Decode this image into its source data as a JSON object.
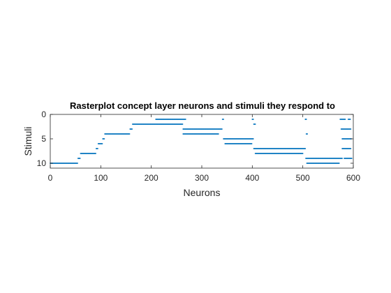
{
  "chart_data": {
    "type": "scatter",
    "title": "Rasterplot concept layer neurons and stimuli they respond to",
    "xlabel": "Neurons",
    "ylabel": "Stimuli",
    "xlim": [
      0,
      600
    ],
    "ylim": [
      0,
      11
    ],
    "y_reversed": true,
    "xticks": [
      0,
      100,
      200,
      300,
      400,
      500,
      600
    ],
    "yticks": [
      0,
      5,
      10
    ],
    "grid": false,
    "legend": "none",
    "marker_color": "#0072BD",
    "series": [
      {
        "segments": [
          {
            "y": 10,
            "x": [
              0,
              54
            ]
          },
          {
            "y": 9,
            "x": [
              55,
              59
            ]
          },
          {
            "y": 8,
            "x": [
              60,
              90
            ]
          },
          {
            "y": 7,
            "x": [
              91,
              94
            ]
          },
          {
            "y": 6,
            "x": [
              95,
              103
            ]
          },
          {
            "y": 5,
            "x": [
              104,
              107
            ]
          },
          {
            "y": 4,
            "x": [
              108,
              157
            ]
          },
          {
            "y": 3,
            "x": [
              158,
              162
            ]
          },
          {
            "y": 2,
            "x": [
              163,
              208
            ]
          },
          {
            "y": 1,
            "x": [
              209,
              268
            ]
          },
          {
            "y": 2,
            "x": [
              209,
              262
            ]
          },
          {
            "y": 3,
            "x": [
              263,
              340
            ]
          },
          {
            "y": 4,
            "x": [
              263,
              333
            ]
          },
          {
            "y": 1,
            "x": [
              341,
              343
            ]
          },
          {
            "y": 5,
            "x": [
              343,
              402
            ]
          },
          {
            "y": 6,
            "x": [
              346,
              399
            ]
          },
          {
            "y": 1,
            "x": [
              400,
              402
            ]
          },
          {
            "y": 2,
            "x": [
              403,
              406
            ]
          },
          {
            "y": 7,
            "x": [
              403,
              505
            ]
          },
          {
            "y": 8,
            "x": [
              406,
              500
            ]
          },
          {
            "y": 1,
            "x": [
              505,
              507
            ]
          },
          {
            "y": 4,
            "x": [
              507,
              509
            ]
          },
          {
            "y": 9,
            "x": [
              506,
              578
            ]
          },
          {
            "y": 10,
            "x": [
              508,
              572
            ]
          },
          {
            "y": 1,
            "x": [
              574,
              584
            ]
          },
          {
            "y": 1,
            "x": [
              590,
              594
            ]
          },
          {
            "y": 3,
            "x": [
              576,
              595
            ]
          },
          {
            "y": 5,
            "x": [
              578,
              596
            ]
          },
          {
            "y": 7,
            "x": [
              578,
              595
            ]
          },
          {
            "y": 9,
            "x": [
              582,
              597
            ]
          }
        ]
      }
    ]
  }
}
